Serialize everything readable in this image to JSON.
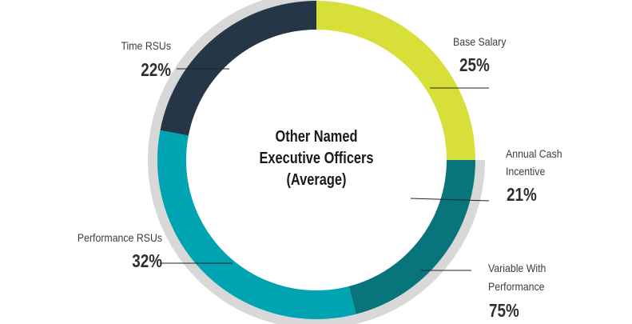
{
  "chart_data": {
    "type": "pie",
    "title": "Other Named Executive Officers (Average)",
    "title_lines": [
      "Other Named",
      "Executive Officers",
      "(Average)"
    ],
    "slices": [
      {
        "label": "Base Salary",
        "value": 25,
        "display": "25%",
        "color": "#d8df38"
      },
      {
        "label": "Annual Cash Incentive",
        "label_lines": [
          "Annual Cash",
          "Incentive"
        ],
        "value": 21,
        "display": "21%",
        "color": "#08747c"
      },
      {
        "label": "Performance RSUs",
        "value": 32,
        "display": "32%",
        "color": "#00a3b1"
      },
      {
        "label": "Time RSUs",
        "value": 22,
        "display": "22%",
        "color": "#253746"
      }
    ],
    "outer_ring": [
      {
        "label": "Variable With Performance",
        "label_lines": [
          "Variable With",
          "Performance"
        ],
        "value": 75,
        "display": "75%",
        "color": "#d8d8d8"
      }
    ],
    "legend": "none"
  }
}
